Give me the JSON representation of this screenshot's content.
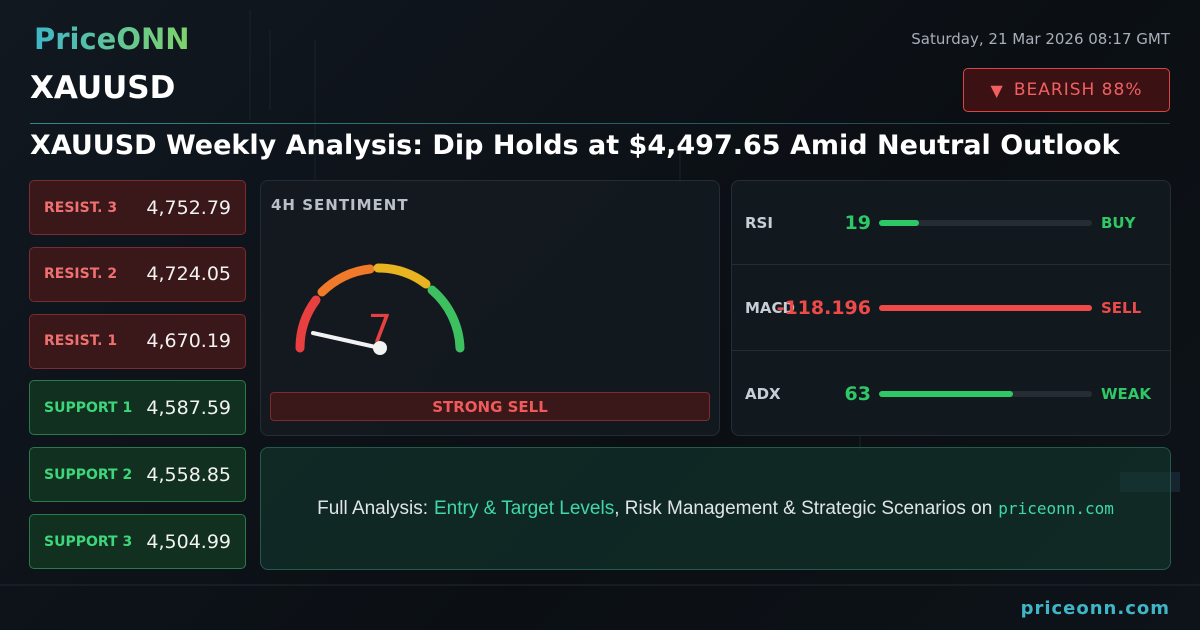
{
  "header": {
    "logo": "PriceONN",
    "date": "Saturday, 21 Mar 2026 08:17 GMT",
    "symbol": "XAUUSD",
    "badge": "BEARISH 88%"
  },
  "title": "XAUUSD Weekly Analysis: Dip Holds at $4,497.65 Amid Neutral Outlook",
  "levels": [
    {
      "label": "RESIST. 3",
      "value": "4,752.79",
      "kind": "resist"
    },
    {
      "label": "RESIST. 2",
      "value": "4,724.05",
      "kind": "resist"
    },
    {
      "label": "RESIST. 1",
      "value": "4,670.19",
      "kind": "resist"
    },
    {
      "label": "SUPPORT 1",
      "value": "4,587.59",
      "kind": "support"
    },
    {
      "label": "SUPPORT 2",
      "value": "4,558.85",
      "kind": "support"
    },
    {
      "label": "SUPPORT 3",
      "value": "4,504.99",
      "kind": "support"
    }
  ],
  "sentiment": {
    "label": "4H SENTIMENT",
    "value": "7",
    "verdict": "STRONG SELL"
  },
  "indicators": [
    {
      "name": "RSI",
      "value": "19",
      "signal": "BUY",
      "color": "#2ec866"
    },
    {
      "name": "MACD",
      "value": "-118.196",
      "signal": "SELL",
      "color": "#ef4a4a"
    },
    {
      "name": "ADX",
      "value": "63",
      "signal": "WEAK",
      "color": "#2ec866"
    }
  ],
  "promo": {
    "lead": "Full Analysis:",
    "highlight": "Entry & Target Levels",
    "rest": ", Risk Management & Strategic Scenarios on",
    "site": "priceonn.com"
  },
  "footer": "priceonn.com"
}
